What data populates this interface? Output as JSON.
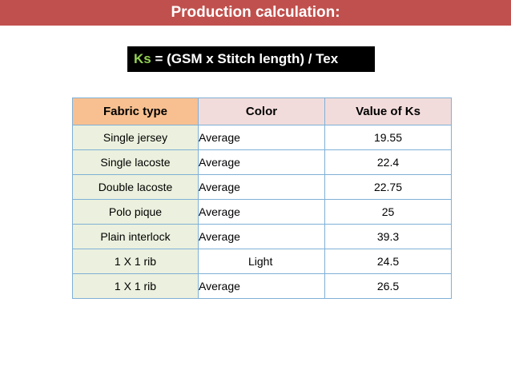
{
  "title": "Production calculation:",
  "formula": {
    "ks": "Ks",
    "rest": " = (GSM x Stitch length) / Tex"
  },
  "table": {
    "headers": {
      "fabric_type": "Fabric type",
      "color": "Color",
      "value_ks": "Value of Ks"
    },
    "rows": [
      {
        "fabric": "Single jersey",
        "color": "Average",
        "ks": "19.55"
      },
      {
        "fabric": "Single lacoste",
        "color": "Average",
        "ks": "22.4"
      },
      {
        "fabric": "Double lacoste",
        "color": "Average",
        "ks": "22.75"
      },
      {
        "fabric": "Polo pique",
        "color": "Average",
        "ks": "25"
      },
      {
        "fabric": "Plain interlock",
        "color": "Average",
        "ks": "39.3"
      },
      {
        "fabric": "1 X 1 rib",
        "color": "Light",
        "ks": "24.5"
      },
      {
        "fabric": "1 X 1 rib",
        "color": "Average",
        "ks": "26.5"
      }
    ]
  },
  "colors": {
    "title_bar": "#c0504d",
    "formula_bg": "#000000",
    "ks_accent": "#92d050",
    "header_fabric": "#f8c090",
    "header_other": "#f2dcdb",
    "fabric_cells": "#ebf1de",
    "border": "#7fb0d6"
  }
}
